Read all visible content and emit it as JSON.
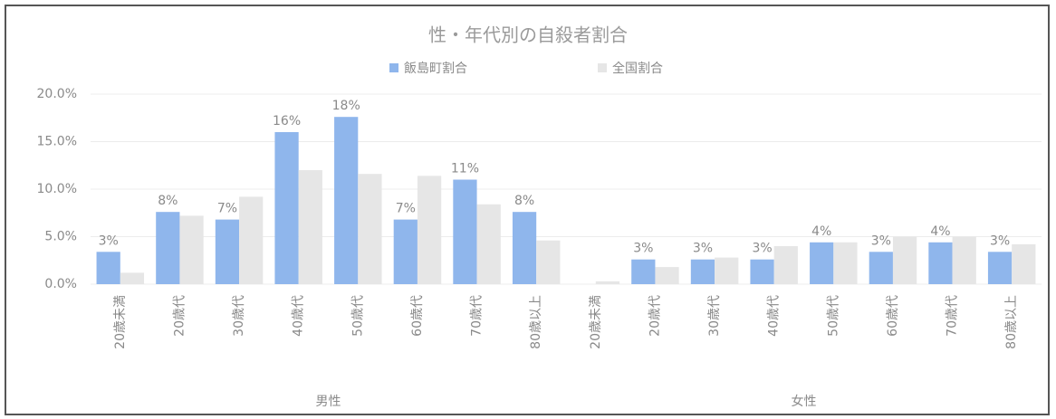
{
  "chart_data": {
    "type": "bar",
    "title": "性・年代別の自殺者割合",
    "groups": [
      "男性",
      "女性"
    ],
    "categories": [
      "20歳未満",
      "20歳代",
      "30歳代",
      "40歳代",
      "50歳代",
      "60歳代",
      "70歳代",
      "80歳以上",
      "20歳未満",
      "20歳代",
      "30歳代",
      "40歳代",
      "50歳代",
      "60歳代",
      "70歳代",
      "80歳以上"
    ],
    "series": [
      {
        "name": "飯島町割合",
        "color": "#8fb6ec",
        "values": [
          3.4,
          7.6,
          6.8,
          16.0,
          17.6,
          6.8,
          11.0,
          7.6,
          0,
          2.6,
          2.6,
          2.6,
          4.4,
          3.4,
          4.4,
          3.4
        ],
        "value_labels": [
          "3%",
          "8%",
          "7%",
          "16%",
          "18%",
          "7%",
          "11%",
          "8%",
          null,
          "3%",
          "3%",
          "3%",
          "4%",
          "3%",
          "4%",
          "3%"
        ]
      },
      {
        "name": "全国割合",
        "color": "#e6e6e6",
        "values": [
          1.2,
          7.2,
          9.2,
          12.0,
          11.6,
          11.4,
          8.4,
          4.6,
          0.3,
          1.8,
          2.8,
          4.0,
          4.4,
          5.0,
          5.0,
          4.2
        ]
      }
    ],
    "ylim": [
      0,
      20
    ],
    "yticks": [
      {
        "value": 0,
        "label": "0.0%"
      },
      {
        "value": 5,
        "label": "5.0%"
      },
      {
        "value": 10,
        "label": "10.0%"
      },
      {
        "value": 15,
        "label": "15.0%"
      },
      {
        "value": 20,
        "label": "20.0%"
      }
    ],
    "grid": true,
    "legend": "top"
  }
}
